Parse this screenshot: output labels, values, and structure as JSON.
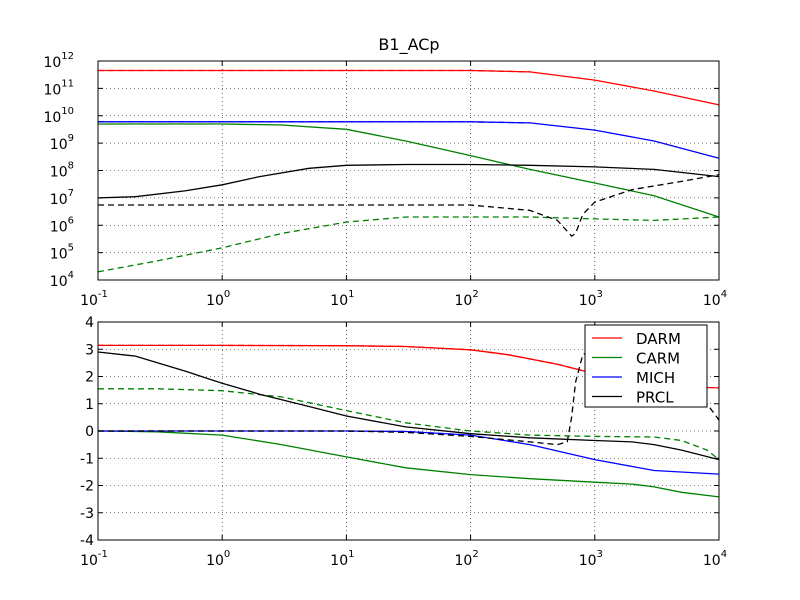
{
  "chart_data": [
    {
      "type": "line",
      "title": "B1_ACp",
      "xscale": "log",
      "yscale": "log",
      "xlim": [
        0.1,
        10000
      ],
      "ylim": [
        10000,
        1000000000000
      ],
      "grid": true,
      "x_ticks": [
        {
          "base": "10",
          "exp": "-1"
        },
        {
          "base": "10",
          "exp": "0"
        },
        {
          "base": "10",
          "exp": "1"
        },
        {
          "base": "10",
          "exp": "2"
        },
        {
          "base": "10",
          "exp": "3"
        },
        {
          "base": "10",
          "exp": "4"
        }
      ],
      "y_ticks": [
        {
          "base": "10",
          "exp": "4"
        },
        {
          "base": "10",
          "exp": "5"
        },
        {
          "base": "10",
          "exp": "6"
        },
        {
          "base": "10",
          "exp": "7"
        },
        {
          "base": "10",
          "exp": "8"
        },
        {
          "base": "10",
          "exp": "9"
        },
        {
          "base": "10",
          "exp": "10"
        },
        {
          "base": "10",
          "exp": "11"
        },
        {
          "base": "10",
          "exp": "12"
        }
      ],
      "series": [
        {
          "color": "#ff0000",
          "dash": false,
          "x": [
            0.1,
            1,
            10,
            100,
            300,
            1000,
            3000,
            10000
          ],
          "y": [
            450000000000.0,
            450000000000.0,
            450000000000.0,
            450000000000.0,
            400000000000.0,
            200000000000.0,
            80000000000.0,
            25000000000.0
          ]
        },
        {
          "color": "#ff0000",
          "dash": true,
          "x": [
            0.1,
            1,
            10,
            100,
            300
          ],
          "y": [
            450000000000.0,
            450000000000.0,
            450000000000.0,
            450000000000.0,
            400000000000.0
          ]
        },
        {
          "color": "#0000ff",
          "dash": false,
          "x": [
            0.1,
            1,
            10,
            100,
            300,
            1000,
            3000,
            10000
          ],
          "y": [
            6000000000.0,
            6000000000.0,
            6000000000.0,
            6000000000.0,
            5500000000.0,
            3000000000.0,
            1200000000.0,
            280000000.0
          ]
        },
        {
          "color": "#0000ff",
          "dash": true,
          "x": [
            0.1,
            1,
            10,
            100,
            300
          ],
          "y": [
            6000000000.0,
            6000000000.0,
            6000000000.0,
            6000000000.0,
            5500000000.0
          ]
        },
        {
          "color": "#008000",
          "dash": false,
          "x": [
            0.1,
            1,
            3,
            10,
            30,
            100,
            300,
            1000,
            3000,
            10000
          ],
          "y": [
            5000000000.0,
            5000000000.0,
            4600000000.0,
            3200000000.0,
            1200000000.0,
            350000000.0,
            110000000.0,
            35000000.0,
            12000000.0,
            2000000.0
          ]
        },
        {
          "color": "#008000",
          "dash": true,
          "x": [
            0.1,
            0.3,
            1,
            3,
            10,
            30,
            100,
            300,
            1000,
            3000,
            10000
          ],
          "y": [
            20000.0,
            50000.0,
            150000.0,
            500000.0,
            1300000.0,
            2000000.0,
            2000000.0,
            2000000.0,
            1700000.0,
            1500000.0,
            2000000.0
          ]
        },
        {
          "color": "#000000",
          "dash": false,
          "x": [
            0.1,
            0.2,
            0.5,
            1,
            2,
            5,
            10,
            30,
            100,
            300,
            1000,
            3000,
            10000
          ],
          "y": [
            10000000.0,
            11000000.0,
            18000000.0,
            30000000.0,
            60000000.0,
            120000000.0,
            155000000.0,
            165000000.0,
            165000000.0,
            155000000.0,
            135000000.0,
            110000000.0,
            60000000.0
          ]
        },
        {
          "color": "#000000",
          "dash": true,
          "x": [
            0.1,
            1,
            10,
            100,
            300,
            500,
            650,
            700,
            800,
            1000,
            2000,
            5000,
            10000
          ],
          "y": [
            5500000.0,
            5500000.0,
            5500000.0,
            5500000.0,
            3500000.0,
            1500000.0,
            400000.0,
            500000.0,
            2500000.0,
            7000000.0,
            20000000.0,
            40000000.0,
            70000000.0
          ]
        }
      ]
    },
    {
      "type": "line",
      "xscale": "log",
      "yscale": "linear",
      "xlim": [
        0.1,
        10000
      ],
      "ylim": [
        -4,
        4
      ],
      "grid": true,
      "legend_position": "top-right",
      "x_ticks": [
        {
          "base": "10",
          "exp": "-1"
        },
        {
          "base": "10",
          "exp": "0"
        },
        {
          "base": "10",
          "exp": "1"
        },
        {
          "base": "10",
          "exp": "2"
        },
        {
          "base": "10",
          "exp": "3"
        },
        {
          "base": "10",
          "exp": "4"
        }
      ],
      "y_ticks": [
        "-4",
        "-3",
        "-2",
        "-1",
        "0",
        "1",
        "2",
        "3",
        "4"
      ],
      "legend": [
        {
          "label": "DARM",
          "color": "#ff0000"
        },
        {
          "label": "CARM",
          "color": "#008000"
        },
        {
          "label": "MICH",
          "color": "#0000ff"
        },
        {
          "label": "PRCL",
          "color": "#000000"
        }
      ],
      "series": [
        {
          "name": "DARM",
          "color": "#ff0000",
          "dash": false,
          "x": [
            0.1,
            1,
            10,
            30,
            100,
            200,
            500,
            1000,
            2000,
            5000,
            10000
          ],
          "y": [
            3.14,
            3.14,
            3.13,
            3.1,
            2.98,
            2.8,
            2.45,
            2.1,
            1.8,
            1.62,
            1.58
          ]
        },
        {
          "name": "DARM",
          "color": "#ff0000",
          "dash": true,
          "x": [
            0.1,
            1,
            10,
            30,
            100,
            200,
            500,
            1000
          ],
          "y": [
            3.14,
            3.14,
            3.13,
            3.1,
            2.98,
            2.8,
            2.45,
            2.1
          ]
        },
        {
          "name": "CARM",
          "color": "#008000",
          "dash": false,
          "x": [
            0.1,
            0.3,
            1,
            3,
            10,
            30,
            100,
            300,
            1000,
            2000,
            3000,
            5000,
            10000
          ],
          "y": [
            0,
            -0.03,
            -0.15,
            -0.5,
            -0.95,
            -1.35,
            -1.6,
            -1.75,
            -1.88,
            -1.95,
            -2.05,
            -2.25,
            -2.42
          ]
        },
        {
          "name": "CARM",
          "color": "#008000",
          "dash": true,
          "x": [
            0.1,
            0.3,
            1,
            3,
            10,
            30,
            100,
            300,
            1000,
            3000,
            5000,
            8000,
            10000
          ],
          "y": [
            1.55,
            1.55,
            1.48,
            1.25,
            0.75,
            0.3,
            0.0,
            -0.15,
            -0.2,
            -0.22,
            -0.35,
            -0.7,
            -1.05
          ]
        },
        {
          "name": "MICH",
          "color": "#0000ff",
          "dash": false,
          "x": [
            0.1,
            1,
            10,
            30,
            100,
            300,
            1000,
            3000,
            10000
          ],
          "y": [
            0,
            0,
            0,
            -0.02,
            -0.15,
            -0.5,
            -1.05,
            -1.45,
            -1.58
          ]
        },
        {
          "name": "MICH",
          "color": "#0000ff",
          "dash": true,
          "x": [
            0.1,
            1,
            10,
            30,
            100
          ],
          "y": [
            0,
            0,
            0,
            -0.02,
            -0.15
          ]
        },
        {
          "name": "PRCL",
          "color": "#000000",
          "dash": false,
          "x": [
            0.1,
            0.2,
            0.5,
            1,
            2,
            5,
            10,
            30,
            100,
            300,
            1000,
            2000,
            3000,
            5000,
            10000
          ],
          "y": [
            2.9,
            2.75,
            2.2,
            1.75,
            1.35,
            0.9,
            0.55,
            0.15,
            -0.1,
            -0.25,
            -0.35,
            -0.4,
            -0.5,
            -0.7,
            -1.05
          ]
        },
        {
          "name": "PRCL",
          "color": "#000000",
          "dash": true,
          "x": [
            0.1,
            1,
            10,
            30,
            100,
            300,
            500,
            600,
            650,
            700,
            800,
            1000,
            2000,
            5000,
            8000,
            10000
          ],
          "y": [
            0,
            0,
            0,
            -0.05,
            -0.2,
            -0.4,
            -0.5,
            -0.4,
            0.5,
            1.8,
            2.8,
            3.05,
            3.1,
            2.0,
            1.0,
            0.4
          ]
        }
      ]
    }
  ]
}
